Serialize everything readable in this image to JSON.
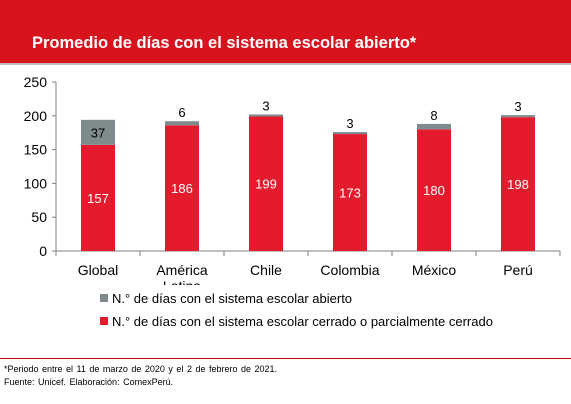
{
  "header": {
    "title": "Promedio de días con el sistema escolar abierto*"
  },
  "colors": {
    "brand_red": "#d7131e",
    "closed_series": "#e31b2c",
    "open_series": "#7f8c8d"
  },
  "chart_data": {
    "type": "bar",
    "stacked": true,
    "categories": [
      "Global",
      "América Latina",
      "Chile",
      "Colombia",
      "México",
      "Perú"
    ],
    "category_labels": [
      [
        "Global"
      ],
      [
        "América",
        "Latina"
      ],
      [
        "Chile"
      ],
      [
        "Colombia"
      ],
      [
        "México"
      ],
      [
        "Perú"
      ]
    ],
    "series": [
      {
        "name": "N.° de días con el sistema escolar cerrado o parcialmente cerrado",
        "values": [
          157,
          186,
          199,
          173,
          180,
          198
        ],
        "color": "#e31b2c"
      },
      {
        "name": "N.° de días con el sistema escolar abierto",
        "values": [
          37,
          6,
          3,
          3,
          8,
          3
        ],
        "color": "#7f8c8d"
      }
    ],
    "ylim": [
      0,
      250
    ],
    "yticks": [
      0,
      50,
      100,
      150,
      200,
      250
    ],
    "xlabel": "",
    "ylabel": "",
    "legend_position": "bottom"
  },
  "legend": {
    "open_label": "N.° de días con el sistema escolar abierto",
    "closed_label": "N.° de días con el sistema escolar cerrado o parcialmente cerrado"
  },
  "footnotes": {
    "period": "*Periodo entre el 11 de marzo de 2020 y el 2 de febrero de 2021.",
    "source": "Fuente: Unicef. Elaboración: ComexPerú."
  }
}
